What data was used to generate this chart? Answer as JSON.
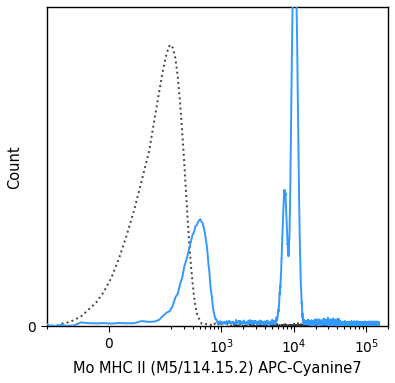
{
  "title": "",
  "xlabel": "Mo MHC II (M5/114.15.2) APC-Cyanine7",
  "ylabel": "Count",
  "background_color": "#ffffff",
  "solid_color": "#3399ff",
  "dashed_color": "#444444",
  "solid_linewidth": 1.4,
  "dashed_linewidth": 1.4,
  "xlabel_fontsize": 10.5,
  "ylabel_fontsize": 10.5,
  "tick_fontsize": 10,
  "ylim": [
    0,
    250
  ],
  "linthresh": 100,
  "linscale": 0.5
}
